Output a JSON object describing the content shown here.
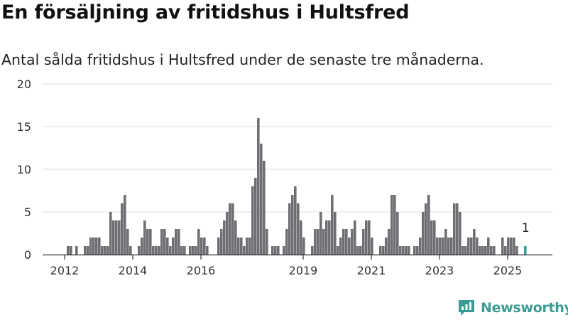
{
  "header": {
    "title": "En försäljning av fritidshus i Hultsfred",
    "subtitle": "Antal sålda fritidshus i Hultsfred under de senaste tre månaderna."
  },
  "brand": {
    "name": "Newsworthy"
  },
  "chart_data": {
    "type": "bar",
    "title": "En försäljning av fritidshus i Hultsfred",
    "subtitle": "Antal sålda fritidshus i Hultsfred under de senaste tre månaderna.",
    "xlabel": "",
    "ylabel": "",
    "ylim": [
      0,
      20
    ],
    "yticks": [
      0,
      5,
      10,
      15,
      20
    ],
    "xticks": [
      "2012",
      "2014",
      "2016",
      "2019",
      "2021",
      "2023",
      "2025"
    ],
    "grid": "horizontal",
    "colors": {
      "bars": "#6f6e73",
      "highlight": "#3a9c94",
      "grid": "#dddddd",
      "axis": "#333333"
    },
    "highlight_label": "1",
    "values": [
      0,
      1,
      1,
      0,
      1,
      0,
      0,
      1,
      1,
      2,
      2,
      2,
      2,
      1,
      1,
      1,
      5,
      4,
      4,
      4,
      6,
      7,
      3,
      1,
      0,
      0,
      1,
      2,
      4,
      3,
      3,
      1,
      1,
      1,
      3,
      3,
      2,
      1,
      2,
      3,
      3,
      1,
      1,
      0,
      1,
      1,
      1,
      3,
      2,
      2,
      1,
      0,
      0,
      0,
      2,
      3,
      4,
      5,
      6,
      6,
      4,
      2,
      2,
      1,
      2,
      2,
      8,
      9,
      16,
      13,
      11,
      3,
      0,
      1,
      1,
      1,
      0,
      1,
      3,
      6,
      7,
      8,
      6,
      4,
      2,
      0,
      0,
      1,
      3,
      3,
      5,
      3,
      4,
      4,
      7,
      5,
      1,
      2,
      3,
      3,
      2,
      3,
      4,
      1,
      1,
      3,
      4,
      4,
      2,
      0,
      0,
      1,
      1,
      2,
      3,
      7,
      7,
      5,
      1,
      1,
      1,
      1,
      0,
      1,
      1,
      2,
      5,
      6,
      7,
      4,
      4,
      2,
      2,
      2,
      3,
      2,
      2,
      6,
      6,
      5,
      1,
      1,
      2,
      2,
      3,
      2,
      1,
      1,
      1,
      2,
      1,
      1,
      0,
      0,
      2,
      1,
      2,
      2,
      2,
      1,
      0,
      0,
      1
    ]
  }
}
